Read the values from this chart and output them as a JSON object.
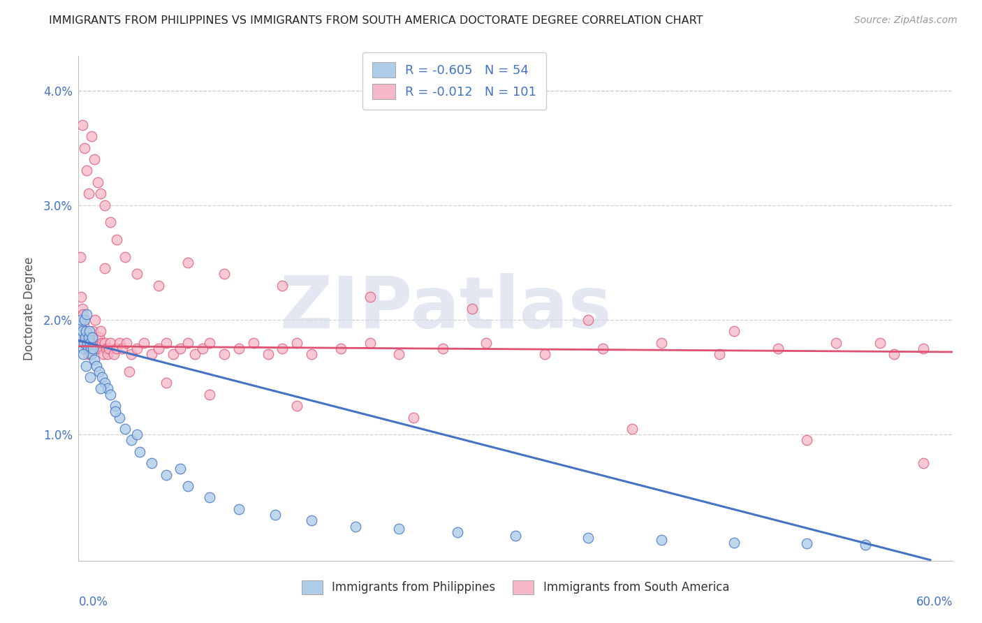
{
  "title": "IMMIGRANTS FROM PHILIPPINES VS IMMIGRANTS FROM SOUTH AMERICA DOCTORATE DEGREE CORRELATION CHART",
  "source": "Source: ZipAtlas.com",
  "ylabel": "Doctorate Degree",
  "xlim": [
    0.0,
    60.0
  ],
  "ylim": [
    -0.1,
    4.3
  ],
  "yticks": [
    0.0,
    1.0,
    2.0,
    3.0,
    4.0
  ],
  "ytick_labels": [
    "",
    "1.0%",
    "2.0%",
    "3.0%",
    "4.0%"
  ],
  "color_philippines": "#aecde8",
  "color_south_america": "#f5b8c8",
  "color_blue_line": "#4472c4",
  "color_pink_line": "#e05070",
  "watermark_color": "#d0d8e8",
  "legend_r1_val": "-0.605",
  "legend_n1_val": "54",
  "legend_r2_val": "-0.012",
  "legend_n2_val": "101",
  "philippines_x": [
    0.1,
    0.15,
    0.2,
    0.25,
    0.3,
    0.35,
    0.4,
    0.45,
    0.5,
    0.55,
    0.6,
    0.65,
    0.7,
    0.75,
    0.8,
    0.85,
    0.9,
    0.95,
    1.0,
    1.1,
    1.2,
    1.4,
    1.6,
    1.8,
    2.0,
    2.2,
    2.5,
    2.8,
    3.2,
    3.6,
    4.2,
    5.0,
    6.0,
    7.5,
    9.0,
    11.0,
    13.5,
    16.0,
    19.0,
    22.0,
    26.0,
    30.0,
    35.0,
    40.0,
    45.0,
    50.0,
    54.0,
    0.3,
    0.5,
    0.8,
    1.5,
    2.5,
    4.0,
    7.0
  ],
  "philippines_y": [
    1.95,
    2.0,
    1.85,
    1.9,
    1.75,
    1.8,
    2.0,
    1.85,
    1.9,
    2.05,
    1.8,
    1.75,
    1.85,
    1.9,
    1.8,
    1.75,
    1.7,
    1.85,
    1.75,
    1.65,
    1.6,
    1.55,
    1.5,
    1.45,
    1.4,
    1.35,
    1.25,
    1.15,
    1.05,
    0.95,
    0.85,
    0.75,
    0.65,
    0.55,
    0.45,
    0.35,
    0.3,
    0.25,
    0.2,
    0.18,
    0.15,
    0.12,
    0.1,
    0.08,
    0.06,
    0.05,
    0.04,
    1.7,
    1.6,
    1.5,
    1.4,
    1.2,
    1.0,
    0.7
  ],
  "south_america_x": [
    0.1,
    0.15,
    0.2,
    0.25,
    0.3,
    0.35,
    0.4,
    0.45,
    0.5,
    0.55,
    0.6,
    0.65,
    0.7,
    0.75,
    0.8,
    0.85,
    0.9,
    0.95,
    1.0,
    1.05,
    1.1,
    1.15,
    1.2,
    1.3,
    1.4,
    1.5,
    1.6,
    1.7,
    1.8,
    1.9,
    2.0,
    2.1,
    2.2,
    2.4,
    2.6,
    2.8,
    3.0,
    3.3,
    3.6,
    4.0,
    4.5,
    5.0,
    5.5,
    6.0,
    6.5,
    7.0,
    7.5,
    8.0,
    8.5,
    9.0,
    10.0,
    11.0,
    12.0,
    13.0,
    14.0,
    15.0,
    16.0,
    18.0,
    20.0,
    22.0,
    25.0,
    28.0,
    32.0,
    36.0,
    40.0,
    44.0,
    48.0,
    52.0,
    56.0,
    58.0,
    0.25,
    0.4,
    0.55,
    0.7,
    0.9,
    1.1,
    1.3,
    1.5,
    1.8,
    2.2,
    2.6,
    3.2,
    4.0,
    5.5,
    7.5,
    10.0,
    14.0,
    20.0,
    27.0,
    35.0,
    45.0,
    55.0,
    3.5,
    6.0,
    9.0,
    15.0,
    23.0,
    38.0,
    50.0,
    58.0,
    1.8
  ],
  "south_america_y": [
    2.55,
    2.2,
    1.85,
    2.1,
    2.05,
    1.95,
    1.85,
    1.9,
    1.8,
    1.75,
    1.85,
    1.7,
    1.8,
    1.75,
    1.85,
    1.7,
    1.75,
    1.85,
    1.9,
    1.8,
    1.75,
    2.0,
    1.8,
    1.75,
    1.85,
    1.9,
    1.8,
    1.7,
    1.8,
    1.75,
    1.7,
    1.75,
    1.8,
    1.7,
    1.75,
    1.8,
    1.75,
    1.8,
    1.7,
    1.75,
    1.8,
    1.7,
    1.75,
    1.8,
    1.7,
    1.75,
    1.8,
    1.7,
    1.75,
    1.8,
    1.7,
    1.75,
    1.8,
    1.7,
    1.75,
    1.8,
    1.7,
    1.75,
    1.8,
    1.7,
    1.75,
    1.8,
    1.7,
    1.75,
    1.8,
    1.7,
    1.75,
    1.8,
    1.7,
    1.75,
    3.7,
    3.5,
    3.3,
    3.1,
    3.6,
    3.4,
    3.2,
    3.1,
    3.0,
    2.85,
    2.7,
    2.55,
    2.4,
    2.3,
    2.5,
    2.4,
    2.3,
    2.2,
    2.1,
    2.0,
    1.9,
    1.8,
    1.55,
    1.45,
    1.35,
    1.25,
    1.15,
    1.05,
    0.95,
    0.75,
    2.45
  ]
}
